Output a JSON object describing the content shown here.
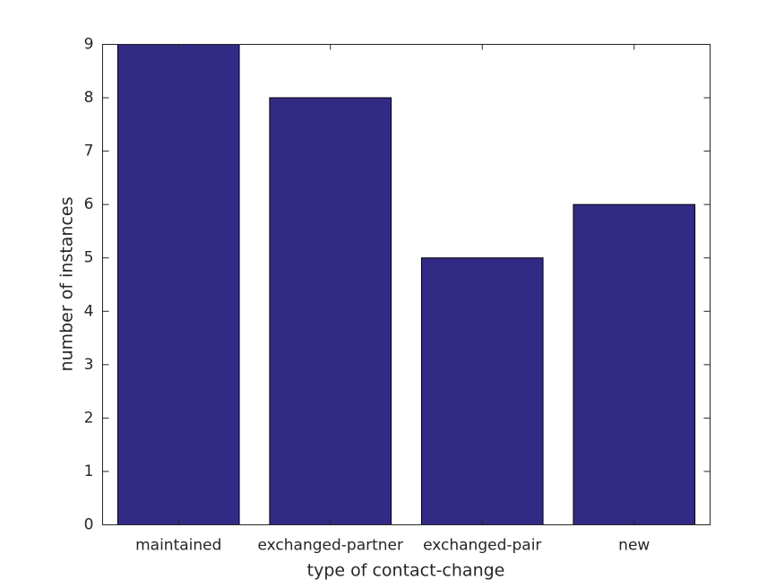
{
  "chart_data": {
    "type": "bar",
    "xlabel": "type of contact-change",
    "ylabel": "number of instances",
    "categories": [
      "maintained",
      "exchanged-partner",
      "exchanged-pair",
      "new"
    ],
    "values": [
      9,
      8,
      5,
      6
    ],
    "color": "#332a86",
    "ylim": [
      0,
      9
    ],
    "yticks": [
      0,
      1,
      2,
      3,
      4,
      5,
      6,
      7,
      8,
      9
    ],
    "grid": false
  }
}
